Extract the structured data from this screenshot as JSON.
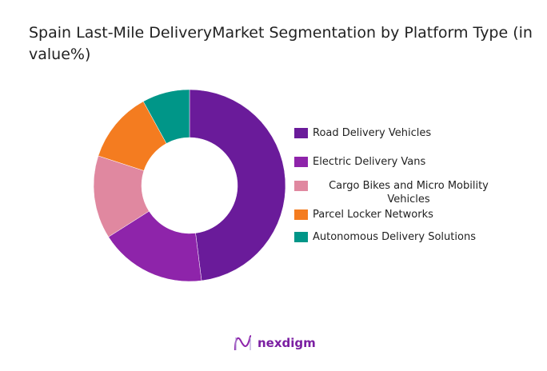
{
  "title": "Spain Last-Mile DeliveryMarket Segmentation by Platform Type (in value%)",
  "logo_text": "nexdigm",
  "chart_data": {
    "type": "pie",
    "donut": true,
    "title": "Spain Last-Mile DeliveryMarket Segmentation by Platform Type (in value%)",
    "legend_position": "right",
    "series": [
      {
        "name": "Road Delivery Vehicles",
        "value": 48,
        "color": "#6a1b9a"
      },
      {
        "name": "Electric Delivery Vans",
        "value": 18,
        "color": "#8e24aa"
      },
      {
        "name": "Cargo Bikes and Micro Mobility Vehicles",
        "value": 14,
        "color": "#e088a0"
      },
      {
        "name": "Parcel Locker Networks",
        "value": 12,
        "color": "#f47c20"
      },
      {
        "name": "Autonomous Delivery Solutions",
        "value": 8,
        "color": "#009688"
      }
    ]
  }
}
